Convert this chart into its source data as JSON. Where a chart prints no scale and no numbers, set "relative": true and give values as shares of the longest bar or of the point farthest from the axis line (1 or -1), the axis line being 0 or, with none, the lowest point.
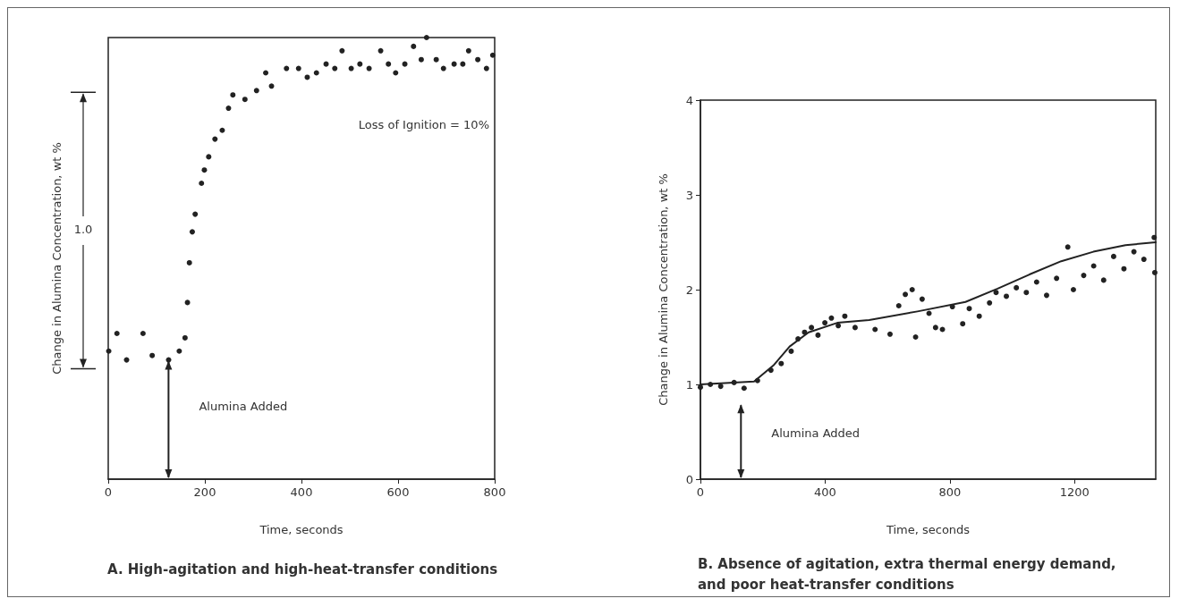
{
  "chart_data": [
    {
      "type": "scatter",
      "title": "A. High-agitation and high-heat-transfer conditions",
      "xlabel": "Time, seconds",
      "ylabel": "Change in Alumina Concentration, wt %",
      "relative": true,
      "marker": "circle",
      "grid": false,
      "xlim": [
        0,
        800
      ],
      "xticks": [
        0,
        200,
        400,
        600,
        800
      ],
      "x": [
        1,
        18,
        38,
        72,
        91,
        125,
        147,
        159,
        164,
        168,
        174,
        180,
        193,
        199,
        208,
        221,
        236,
        249,
        258,
        283,
        307,
        326,
        338,
        369,
        394,
        412,
        431,
        451,
        469,
        484,
        503,
        521,
        540,
        564,
        580,
        595,
        614,
        632,
        648,
        659,
        679,
        694,
        716,
        734,
        746,
        765,
        783,
        796
      ],
      "series": [
        {
          "color": "#222222",
          "values": [
            0.29,
            0.33,
            0.27,
            0.33,
            0.28,
            0.27,
            0.29,
            0.32,
            0.4,
            0.49,
            0.56,
            0.6,
            0.67,
            0.7,
            0.73,
            0.77,
            0.79,
            0.84,
            0.87,
            0.86,
            0.88,
            0.92,
            0.89,
            0.93,
            0.93,
            0.91,
            0.92,
            0.94,
            0.93,
            0.97,
            0.93,
            0.94,
            0.93,
            0.97,
            0.94,
            0.92,
            0.94,
            0.98,
            0.95,
            1.0,
            0.95,
            0.93,
            0.94,
            0.94,
            0.97,
            0.95,
            0.93,
            0.96
          ]
        }
      ],
      "annotations": [
        "1.0",
        "Loss of Ignition = 10%",
        "Alumina Added"
      ]
    },
    {
      "type": "scatter",
      "title": "B. Absence of agitation, extra thermal energy demand, and poor heat-transfer conditions",
      "xlabel": "Time, seconds",
      "ylabel": "Change in Alumina Concentration, wt %",
      "grid": false,
      "xlim": [
        0,
        1460
      ],
      "xticks": [
        0,
        400,
        800,
        1200
      ],
      "ylim": [
        0,
        4
      ],
      "yticks": [
        0,
        1,
        2,
        3,
        4
      ],
      "series": [
        {
          "marker": "circle",
          "color": "#222222",
          "x": [
            0,
            32,
            65,
            108,
            140,
            183,
            226,
            259,
            291,
            313,
            334,
            356,
            377,
            399,
            420,
            442,
            463,
            496,
            560,
            608,
            636,
            657,
            679,
            690,
            711,
            733,
            754,
            776,
            808,
            841,
            862,
            894,
            927,
            948,
            981,
            1013,
            1045,
            1078,
            1110,
            1142,
            1178,
            1196,
            1229,
            1261,
            1293,
            1325,
            1358,
            1390,
            1422,
            1455,
            1457
          ],
          "values": [
            0.97,
            1.0,
            0.98,
            1.02,
            0.96,
            1.04,
            1.15,
            1.22,
            1.35,
            1.48,
            1.55,
            1.6,
            1.52,
            1.65,
            1.7,
            1.62,
            1.72,
            1.6,
            1.58,
            1.53,
            1.83,
            1.95,
            2.0,
            1.5,
            1.9,
            1.75,
            1.6,
            1.58,
            1.82,
            1.64,
            1.8,
            1.72,
            1.86,
            1.97,
            1.93,
            2.02,
            1.97,
            2.08,
            1.94,
            2.12,
            2.45,
            2.0,
            2.15,
            2.25,
            2.1,
            2.35,
            2.22,
            2.4,
            2.32,
            2.55,
            2.18
          ]
        },
        {
          "type": "line",
          "marker": "none",
          "color": "#222222",
          "line_style": "solid",
          "x": [
            0,
            172,
            234,
            286,
            347,
            439,
            541,
            696,
            850,
            953,
            1055,
            1157,
            1260,
            1363,
            1460
          ],
          "values": [
            1.0,
            1.03,
            1.2,
            1.4,
            1.55,
            1.65,
            1.68,
            1.77,
            1.87,
            2.01,
            2.16,
            2.3,
            2.4,
            2.47,
            2.5
          ]
        }
      ],
      "annotations": [
        "Alumina Added"
      ]
    }
  ]
}
